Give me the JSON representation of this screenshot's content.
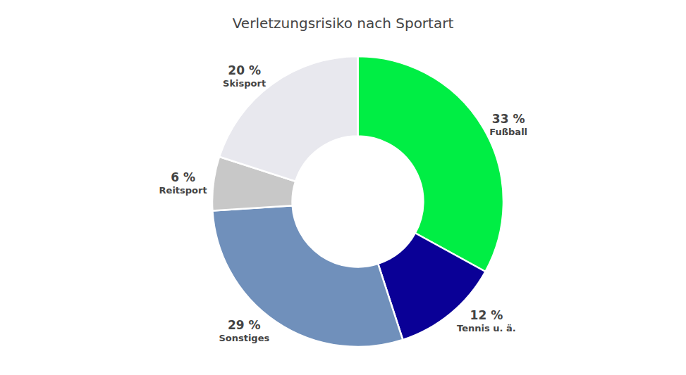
{
  "chart_data": {
    "type": "donut",
    "title": "Verletzungsrisiko nach Sportart",
    "categories": [
      "Fußball",
      "Tennis u. ä.",
      "Sonstiges",
      "Reitsport",
      "Skisport"
    ],
    "values": [
      33,
      12,
      29,
      6,
      20
    ],
    "value_labels": [
      "33 %",
      "12 %",
      "29 %",
      "6 %",
      "20 %"
    ],
    "colors": [
      "#00ee44",
      "#0a0096",
      "#7090bb",
      "#c8c8c8",
      "#e8e8ee"
    ],
    "data_labels": true
  }
}
